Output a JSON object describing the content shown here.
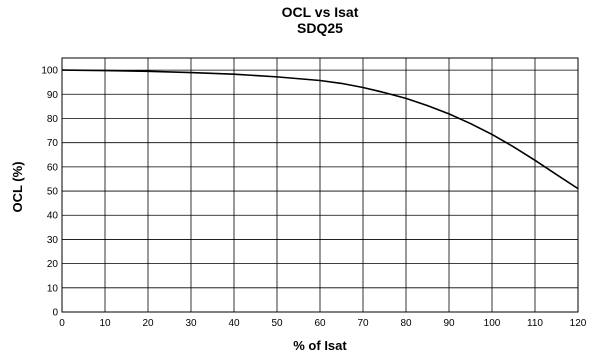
{
  "chart_data": {
    "type": "line",
    "title": "OCL vs Isat",
    "subtitle": "SDQ25",
    "xlabel": "% of Isat",
    "ylabel": "OCL (%)",
    "xlim": [
      0,
      120
    ],
    "ylim": [
      0,
      105
    ],
    "x_ticks": [
      "0",
      "10",
      "20",
      "30",
      "40",
      "50",
      "60",
      "70",
      "80",
      "90",
      "100",
      "110",
      "120"
    ],
    "y_ticks": [
      "0",
      "10",
      "20",
      "30",
      "40",
      "50",
      "60",
      "70",
      "80",
      "90",
      "100"
    ],
    "grid": true,
    "series": [
      {
        "x": [
          0,
          10,
          20,
          30,
          40,
          50,
          60,
          65,
          70,
          75,
          80,
          85,
          90,
          95,
          100,
          105,
          110,
          115,
          120
        ],
        "y": [
          100,
          99.8,
          99.5,
          99.0,
          98.3,
          97.2,
          95.7,
          94.5,
          92.8,
          90.7,
          88.3,
          85.3,
          81.9,
          77.9,
          73.4,
          68.3,
          62.7,
          56.8,
          51.0
        ]
      }
    ],
    "colors": {
      "line": "#000000",
      "grid": "#000000",
      "background": "#ffffff"
    }
  }
}
